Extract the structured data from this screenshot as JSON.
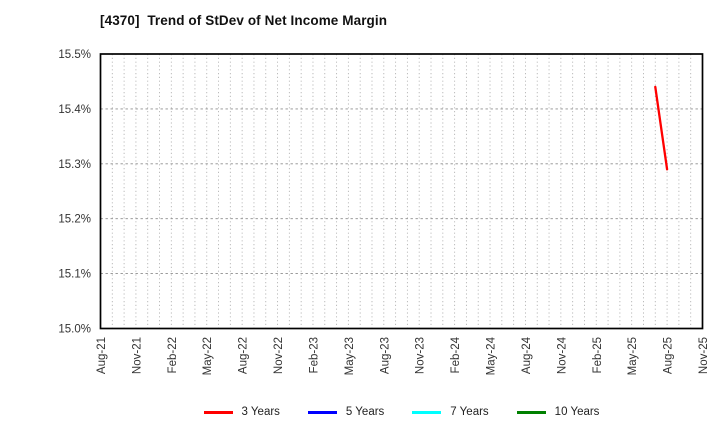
{
  "chart_data": {
    "type": "line",
    "title": "[4370]  Trend of StDev of Net Income Margin",
    "xlabel": "",
    "ylabel": "",
    "grid": true,
    "legend_position": "bottom",
    "background_color": "#ffffff",
    "x_axis": {
      "tick_labels": [
        "Aug-21",
        "Nov-21",
        "Feb-22",
        "May-22",
        "Aug-22",
        "Nov-22",
        "Feb-23",
        "May-23",
        "Aug-23",
        "Nov-23",
        "Feb-24",
        "May-24",
        "Aug-24",
        "Nov-24",
        "Feb-25",
        "May-25",
        "Aug-25",
        "Nov-25"
      ],
      "months_per_tick": 3,
      "total_months": 51,
      "label_rotation_deg": 90
    },
    "y_axis": {
      "tick_labels": [
        "15.0%",
        "15.1%",
        "15.2%",
        "15.3%",
        "15.4%",
        "15.5%"
      ],
      "tick_values": [
        15.0,
        15.1,
        15.2,
        15.3,
        15.4,
        15.5
      ],
      "ylim": [
        15.0,
        15.5
      ],
      "unit": "%"
    },
    "series": [
      {
        "name": "3 Years",
        "color": "#ff0000",
        "points": [
          {
            "x": "Jul-25",
            "month_index": 47,
            "y": 15.44
          },
          {
            "x": "Aug-25",
            "month_index": 48,
            "y": 15.29
          }
        ]
      },
      {
        "name": "5 Years",
        "color": "#0000ff",
        "points": []
      },
      {
        "name": "7 Years",
        "color": "#00ffff",
        "points": []
      },
      {
        "name": "10 Years",
        "color": "#008000",
        "points": []
      }
    ]
  },
  "style": {
    "frame_color": "#000000",
    "vertical_grid_color": "#b4b4b4",
    "horizontal_grid_color": "#8c8c8c",
    "tick_label_color": "#333333",
    "title_color": "#111111"
  }
}
